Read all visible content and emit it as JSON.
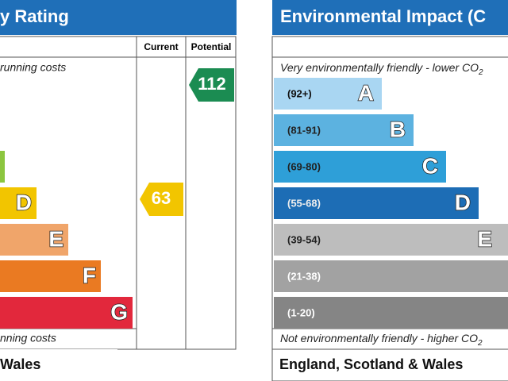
{
  "left": {
    "title": "y Rating",
    "top_note": "running costs",
    "columns": [
      "Current",
      "Potential"
    ],
    "bands": [
      {
        "letter": "D"
      },
      {
        "letter": "E"
      },
      {
        "letter": "F"
      },
      {
        "letter": "G"
      }
    ],
    "current": "63",
    "potential": "112",
    "bottom_note": "nning costs",
    "footer": "Wales"
  },
  "right": {
    "title": "Environmental Impact (C",
    "top_note": "Very environmentally friendly - lower CO",
    "top_note_sub": "2",
    "bands": [
      {
        "range": "(92+)",
        "letter": "A"
      },
      {
        "range": "(81-91)",
        "letter": "B"
      },
      {
        "range": "(69-80)",
        "letter": "C"
      },
      {
        "range": "(55-68)",
        "letter": "D"
      },
      {
        "range": "(39-54)",
        "letter": "E"
      },
      {
        "range": "(21-38)"
      },
      {
        "range": "(1-20)"
      }
    ],
    "bottom_note": "Not environmentally friendly - higher CO",
    "bottom_note_sub": "2",
    "footer": "England, Scotland & Wales"
  }
}
